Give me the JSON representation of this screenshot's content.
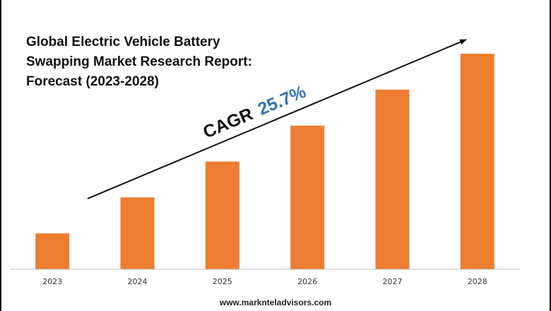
{
  "chart_data": {
    "type": "bar",
    "title_lines": [
      "Global Electric Vehicle Battery",
      "Swapping Market Research Report:",
      "Forecast (2023-2028)"
    ],
    "categories": [
      "2023",
      "2024",
      "2025",
      "2026",
      "2027",
      "2028"
    ],
    "values": [
      1.0,
      2.0,
      3.0,
      4.0,
      5.0,
      6.0
    ],
    "ylim": [
      0,
      6.2
    ],
    "xlabel": "",
    "ylabel": "",
    "grid": false,
    "bar_color": "#ED7D31",
    "annotation": {
      "label": "CAGR",
      "value": "25.7%",
      "value_color": "#2E75B6"
    }
  },
  "footer": {
    "website": "www.marknteladvisors.com"
  }
}
